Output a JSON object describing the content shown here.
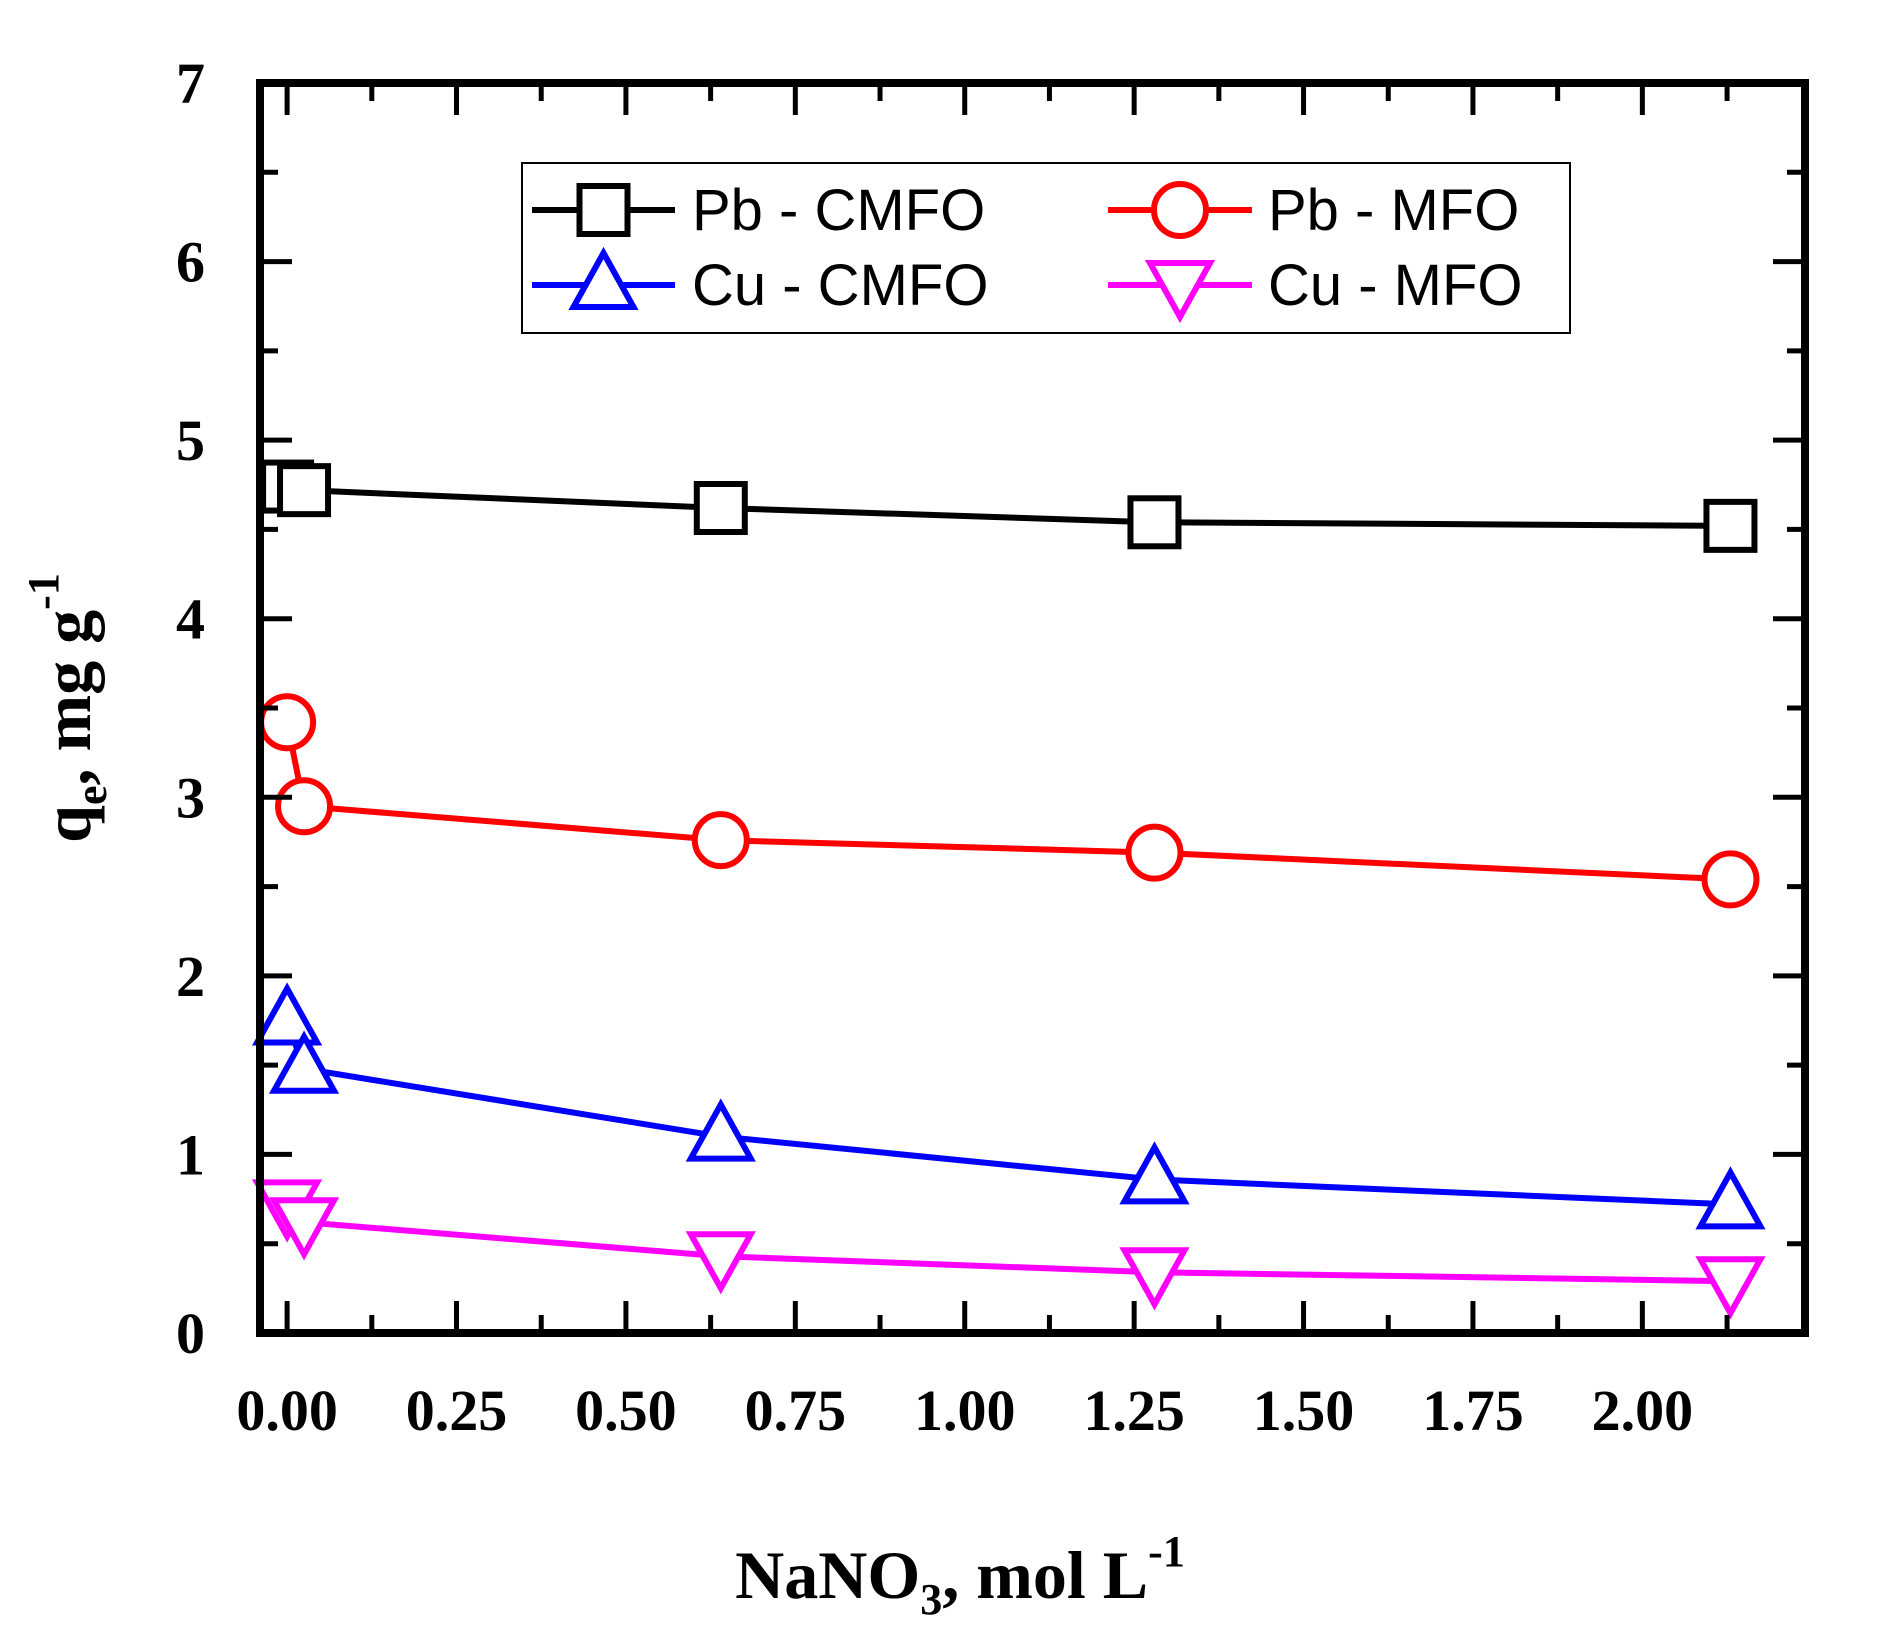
{
  "chart_data": {
    "type": "line",
    "title": "",
    "xlabel": {
      "base": "NaNO",
      "sub": "3",
      "rest": ", mol L",
      "sup": "-1"
    },
    "ylabel": {
      "base": "q",
      "sub": "e",
      "rest": ", mg g",
      "sup": "-1"
    },
    "xlim": [
      -0.04,
      2.24
    ],
    "ylim": [
      0,
      7
    ],
    "xticks": [
      0.0,
      0.25,
      0.5,
      0.75,
      1.0,
      1.25,
      1.5,
      1.75,
      2.0
    ],
    "xtick_labels": [
      "0.00",
      "0.25",
      "0.50",
      "0.75",
      "1.00",
      "1.25",
      "1.50",
      "1.75",
      "2.00"
    ],
    "yticks": [
      0,
      1,
      2,
      3,
      4,
      5,
      6,
      7
    ],
    "ytick_labels": [
      "0",
      "1",
      "2",
      "3",
      "4",
      "5",
      "6",
      "7"
    ],
    "legend_position": "top-center",
    "series": [
      {
        "name": "Pb - CMFO",
        "color": "#000000",
        "marker": "square",
        "x": [
          0.0,
          0.025,
          0.64,
          1.28,
          2.13
        ],
        "y": [
          4.74,
          4.72,
          4.62,
          4.54,
          4.52
        ]
      },
      {
        "name": "Pb - MFO",
        "color": "#ff0000",
        "marker": "circle",
        "x": [
          0.0,
          0.025,
          0.64,
          1.28,
          2.13
        ],
        "y": [
          3.42,
          2.95,
          2.76,
          2.69,
          2.54
        ]
      },
      {
        "name": "Cu - CMFO",
        "color": "#0000ff",
        "marker": "triangle-up",
        "x": [
          0.0,
          0.025,
          0.64,
          1.28,
          2.13
        ],
        "y": [
          1.75,
          1.48,
          1.1,
          0.86,
          0.72
        ]
      },
      {
        "name": "Cu - MFO",
        "color": "#ff00ff",
        "marker": "triangle-down",
        "x": [
          0.0,
          0.025,
          0.64,
          1.28,
          2.13
        ],
        "y": [
          0.72,
          0.62,
          0.43,
          0.34,
          0.29
        ]
      }
    ]
  }
}
